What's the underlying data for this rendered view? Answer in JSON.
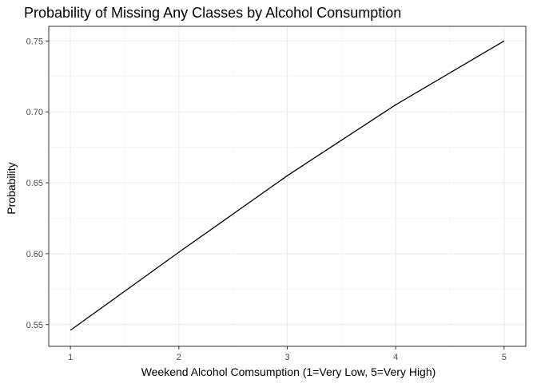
{
  "chart_data": {
    "type": "line",
    "title": "Probability of Missing Any Classes by Alcohol Consumption",
    "xlabel": "Weekend Alcohol Comsumption (1=Very Low, 5=Very High)",
    "ylabel": "Probability",
    "x_ticks": [
      1,
      2,
      3,
      4,
      5
    ],
    "y_ticks": [
      "0.55",
      "0.60",
      "0.65",
      "0.70",
      "0.75"
    ],
    "xlim": [
      0.8,
      5.2
    ],
    "ylim": [
      0.5347,
      0.7603
    ],
    "grid": true,
    "series": [
      {
        "x": [
          1,
          2,
          3,
          4,
          5
        ],
        "y": [
          0.546,
          0.601,
          0.655,
          0.705,
          0.75
        ],
        "color": "#000000"
      }
    ]
  }
}
